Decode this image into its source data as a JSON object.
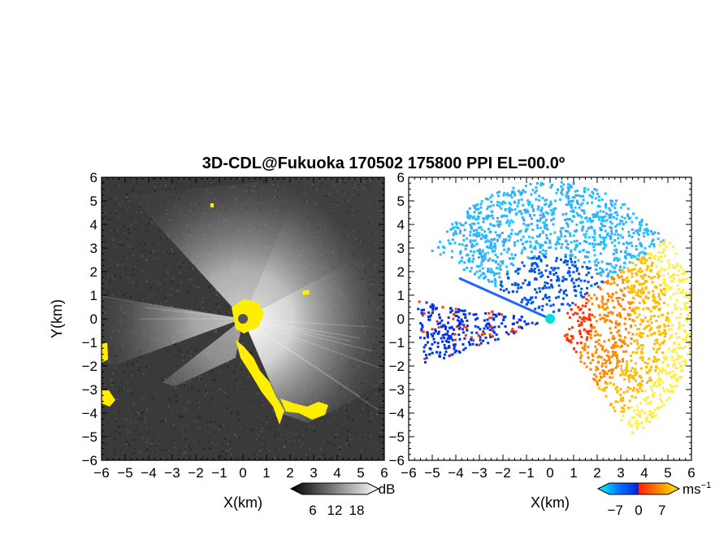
{
  "chart_data": [
    {
      "type": "heatmap",
      "title": "3D-CDL@Fukuoka 170502 175800 PPI EL=00.0º",
      "panel": "reflectivity",
      "xlabel": "X(km)",
      "ylabel": "Y(km)",
      "xlim": [
        -6,
        6
      ],
      "ylim": [
        -6,
        6
      ],
      "xticks": [
        "−6",
        "−5",
        "−4",
        "−3",
        "−2",
        "−1",
        "0",
        "1",
        "2",
        "3",
        "4",
        "5",
        "6"
      ],
      "yticks": [
        "−6",
        "−5",
        "−4",
        "−3",
        "−2",
        "−1",
        "0",
        "1",
        "2",
        "3",
        "4",
        "5",
        "6"
      ],
      "colorbar": {
        "unit": "dB",
        "ticks": [
          "6",
          "12",
          "18"
        ],
        "tick_values": [
          6,
          12,
          18
        ],
        "range": [
          0,
          24
        ],
        "colors": [
          "#000000",
          "#ffffff"
        ]
      },
      "overlay_color": "#ffee00",
      "background_color": "#3a3a3a"
    },
    {
      "type": "heatmap",
      "panel": "radial-velocity",
      "xlabel": "X(km)",
      "ylabel": "",
      "xlim": [
        -6,
        6
      ],
      "ylim": [
        -6,
        6
      ],
      "xticks": [
        "−6",
        "−5",
        "−4",
        "−3",
        "−2",
        "−1",
        "0",
        "1",
        "2",
        "3",
        "4",
        "5",
        "6"
      ],
      "yticks": [
        "−6",
        "−5",
        "−4",
        "−3",
        "−2",
        "−1",
        "0",
        "1",
        "2",
        "3",
        "4",
        "5",
        "6"
      ],
      "colorbar": {
        "unit": "ms",
        "unit_exp": "−1",
        "ticks": [
          "−7",
          "0",
          "7"
        ],
        "tick_values": [
          -7,
          0,
          7
        ],
        "range": [
          -10,
          10
        ],
        "colors": [
          "#00ffff",
          "#0077ff",
          "#0022dd",
          "#ff2200",
          "#ff8800",
          "#ffee00"
        ]
      },
      "background_color": "#ffffff"
    }
  ]
}
